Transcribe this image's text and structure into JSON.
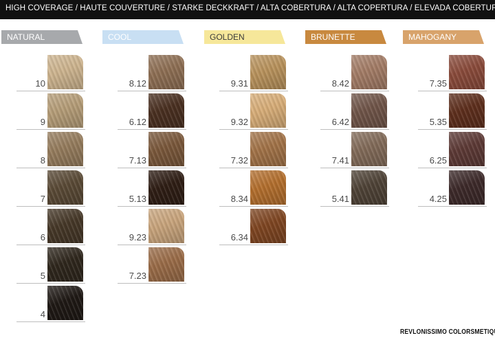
{
  "header": {
    "title": "HIGH COVERAGE / HAUTE COUVERTURE / STARKE DECKKRAFT / ALTA COBERTURA / ALTA COPERTURA / ELEVADA COBERTURA"
  },
  "categories": [
    {
      "label": "NATURAL",
      "color": "#a7a9ac",
      "shades": [
        {
          "code": "10",
          "color": "#cdb48f"
        },
        {
          "code": "9",
          "color": "#b59d78"
        },
        {
          "code": "8",
          "color": "#957c5d"
        },
        {
          "code": "7",
          "color": "#5a4a36"
        },
        {
          "code": "6",
          "color": "#463828"
        },
        {
          "code": "5",
          "color": "#2f271d"
        },
        {
          "code": "4",
          "color": "#1f1915"
        }
      ]
    },
    {
      "label": "COOL",
      "color": "#c8dff3",
      "shades": [
        {
          "code": "8.12",
          "color": "#8e6f54"
        },
        {
          "code": "6.12",
          "color": "#4a3021"
        },
        {
          "code": "7.13",
          "color": "#7a583b"
        },
        {
          "code": "5.13",
          "color": "#2f1e15"
        },
        {
          "code": "9.23",
          "color": "#c8a47c"
        },
        {
          "code": "7.23",
          "color": "#9a6c48"
        }
      ]
    },
    {
      "label": "GOLDEN",
      "color": "#f6e79a",
      "shades": [
        {
          "code": "9.31",
          "color": "#b8925c"
        },
        {
          "code": "9.32",
          "color": "#d7ad78"
        },
        {
          "code": "7.32",
          "color": "#a27348"
        },
        {
          "code": "8.34",
          "color": "#b36f2e"
        },
        {
          "code": "6.34",
          "color": "#7f4622"
        }
      ]
    },
    {
      "label": "BRUNETTE",
      "color": "#c8893f",
      "shades": [
        {
          "code": "8.42",
          "color": "#a37c66"
        },
        {
          "code": "6.42",
          "color": "#705549"
        },
        {
          "code": "7.41",
          "color": "#826b59"
        },
        {
          "code": "5.41",
          "color": "#4f4337"
        }
      ]
    },
    {
      "label": "MAHOGANY",
      "color": "#d8a36b",
      "shades": [
        {
          "code": "7.35",
          "color": "#8a4b3b"
        },
        {
          "code": "5.35",
          "color": "#5e2f1d"
        },
        {
          "code": "6.25",
          "color": "#5d3a36"
        },
        {
          "code": "4.25",
          "color": "#3d2a2a"
        }
      ]
    }
  ],
  "brand": {
    "text": "REVLONISSIMO COLORSMETIQUE™"
  }
}
